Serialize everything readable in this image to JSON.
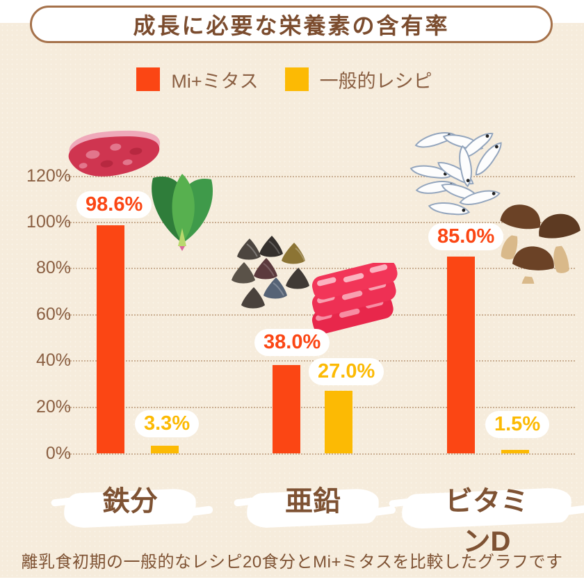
{
  "page": {
    "title": "成長に必要な栄養素の含有率",
    "caption": "離乳食初期の一般的なレシピ20食分とMi+ミタスを比較したグラフです"
  },
  "legend": {
    "items": [
      {
        "label": "Mi+ミタス",
        "color": "#fb4614"
      },
      {
        "label": "一般的レシピ",
        "color": "#fcba04"
      }
    ]
  },
  "chart_data": {
    "type": "bar",
    "title": "成長に必要な栄養素の含有率",
    "categories": [
      "鉄分",
      "亜鉛",
      "ビタミンD"
    ],
    "series": [
      {
        "name": "Mi+ミタス",
        "color": "#fb4614",
        "values": [
          98.6,
          38.0,
          85.0
        ],
        "labels": [
          "98.6%",
          "38.0%",
          "85.0%"
        ]
      },
      {
        "name": "一般的レシピ",
        "color": "#fcba04",
        "values": [
          3.3,
          27.0,
          1.5
        ],
        "labels": [
          "3.3%",
          "27.0%",
          "1.5%"
        ]
      }
    ],
    "y_ticks": [
      "120%",
      "100%",
      "80%",
      "60%",
      "40%",
      "20%",
      "0%"
    ],
    "ylim": [
      0,
      130
    ],
    "grid": "horizontal-dotted",
    "legend_position": "top",
    "xlabel": "",
    "ylabel": ""
  },
  "illustrations": {
    "iron": [
      "beef-steak",
      "spinach"
    ],
    "zinc": [
      "clams",
      "sliced-beef"
    ],
    "vitamin_d": [
      "shirasu-fish",
      "shiitake-mushrooms"
    ]
  },
  "colors": {
    "background": "#f6ecdc",
    "accent_orange": "#fb4614",
    "accent_yellow": "#fcba04",
    "text_brown": "#8a5f42",
    "title_text": "#7b4c2e",
    "title_border": "#a5714a",
    "gridline": "#c9ae92"
  }
}
